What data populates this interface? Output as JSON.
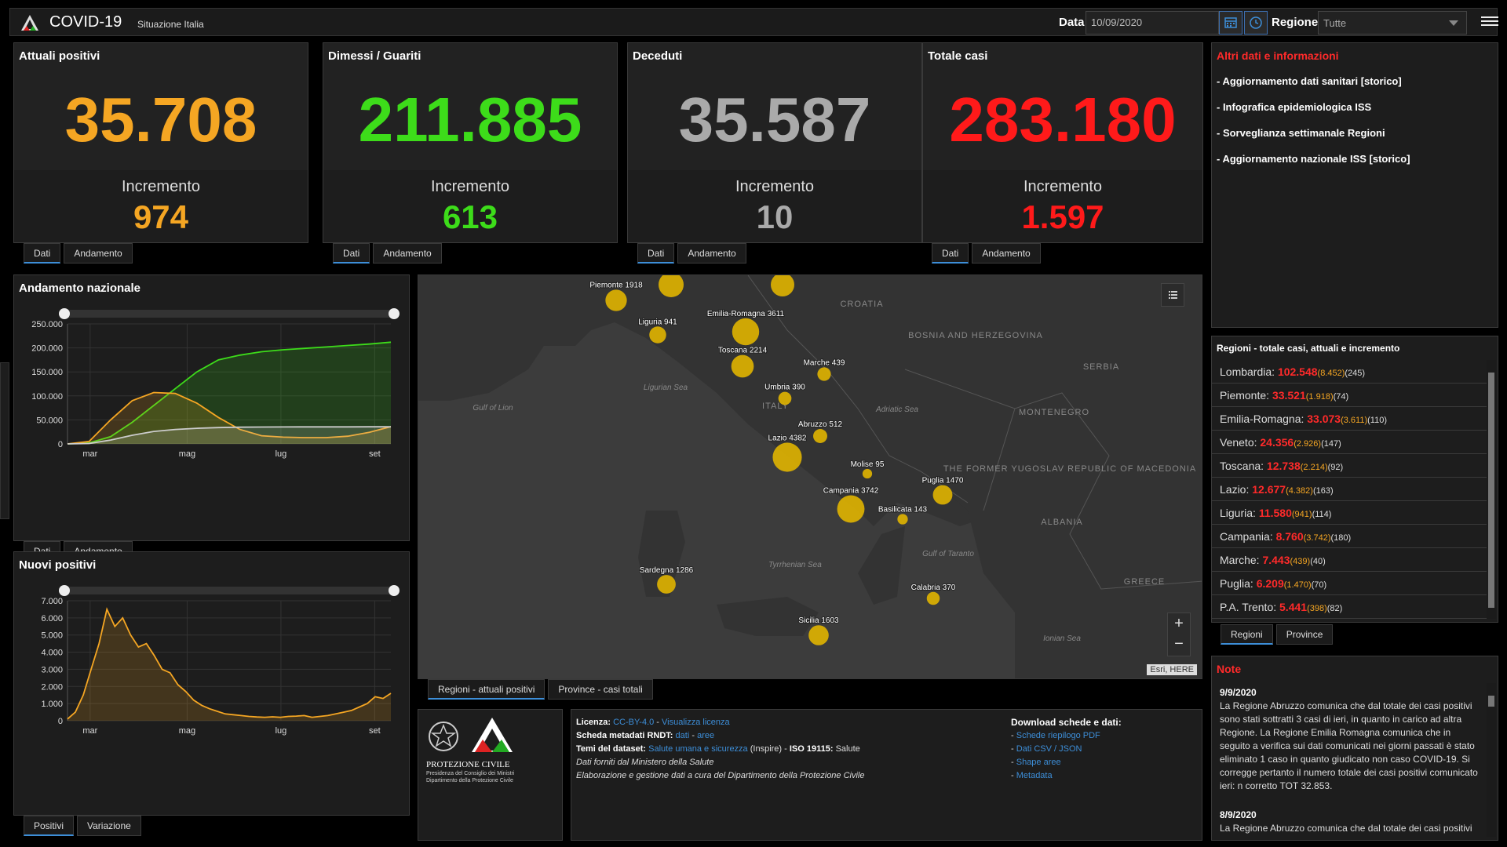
{
  "header": {
    "title": "COVID-19",
    "subtitle": "Situazione Italia",
    "date_label": "Data",
    "date_value": "10/09/2020",
    "region_label": "Regione",
    "region_value": "Tutte"
  },
  "stats": [
    {
      "label": "Attuali positivi",
      "value": "35.708",
      "inc_label": "Incremento",
      "inc": "974",
      "color": "#f5a623"
    },
    {
      "label": "Dimessi / Guariti",
      "value": "211.885",
      "inc_label": "Incremento",
      "inc": "613",
      "color": "#3ddc1a"
    },
    {
      "label": "Deceduti",
      "value": "35.587",
      "inc_label": "Incremento",
      "inc": "10",
      "color": "#aaaaaa"
    },
    {
      "label": "Totale casi",
      "value": "283.180",
      "inc_label": "Incremento",
      "inc": "1.597",
      "color": "#ff1a1a"
    }
  ],
  "stat_tabs": {
    "dati": "Dati",
    "andamento": "Andamento"
  },
  "info": {
    "title": "Altri dati e informazioni",
    "links": [
      "- Aggiornamento dati sanitari [storico]",
      "- Infografica epidemiologica ISS",
      "- Sorveglianza settimanale Regioni",
      "- Aggiornamento nazionale ISS [storico]"
    ]
  },
  "chart_data": [
    {
      "type": "area",
      "title": "Andamento nazionale",
      "x_ticks": [
        "mar",
        "mag",
        "lug",
        "set"
      ],
      "y_ticks": [
        "0",
        "50.000",
        "100.000",
        "150.000",
        "200.000",
        "250.000"
      ],
      "ylim": [
        0,
        250000
      ],
      "series": [
        {
          "color": "#3ddc1a",
          "values": [
            0,
            2000,
            15000,
            45000,
            80000,
            115000,
            150000,
            175000,
            185000,
            192000,
            196000,
            199000,
            202000,
            205000,
            208000,
            212000
          ]
        },
        {
          "color": "#f5a623",
          "values": [
            0,
            5000,
            50000,
            90000,
            107000,
            105000,
            85000,
            55000,
            30000,
            17000,
            14000,
            13000,
            13000,
            16000,
            24000,
            36000
          ]
        },
        {
          "color": "#cccccc",
          "values": [
            0,
            800,
            8000,
            18000,
            26000,
            30000,
            32500,
            34000,
            34800,
            35100,
            35300,
            35400,
            35450,
            35500,
            35550,
            35600
          ]
        }
      ]
    },
    {
      "type": "area",
      "title": "Nuovi positivi",
      "x_ticks": [
        "mar",
        "mag",
        "lug",
        "set"
      ],
      "y_ticks": [
        "0",
        "1.000",
        "2.000",
        "3.000",
        "4.000",
        "5.000",
        "6.000",
        "7.000"
      ],
      "ylim": [
        0,
        7000
      ],
      "series": [
        {
          "color": "#f5a623",
          "values": [
            100,
            500,
            1500,
            3000,
            4500,
            6500,
            5500,
            6000,
            5000,
            4300,
            4500,
            3800,
            3000,
            2800,
            2100,
            1700,
            1200,
            900,
            700,
            550,
            400,
            350,
            300,
            250,
            220,
            200,
            230,
            200,
            250,
            270,
            300,
            200,
            250,
            300,
            400,
            500,
            600,
            800,
            1000,
            1400,
            1300,
            1600
          ]
        }
      ]
    }
  ],
  "chart_tabs": {
    "andamento": [
      "Dati",
      "Andamento"
    ],
    "nuovi": [
      "Positivi",
      "Variazione"
    ]
  },
  "map": {
    "places": [
      {
        "label": "Piemonte 1918",
        "value": 1918
      },
      {
        "label": "Liguria 941",
        "value": 941
      },
      {
        "label": "Emilia-Romagna 3611",
        "value": 3611
      },
      {
        "label": "Toscana 2214",
        "value": 2214
      },
      {
        "label": "Marche 439",
        "value": 439
      },
      {
        "label": "Umbria 390",
        "value": 390
      },
      {
        "label": "Abruzzo 512",
        "value": 512
      },
      {
        "label": "Lazio 4382",
        "value": 4382
      },
      {
        "label": "Molise 95",
        "value": 95
      },
      {
        "label": "Puglia 1470",
        "value": 1470
      },
      {
        "label": "Campania 3742",
        "value": 3742
      },
      {
        "label": "Basilicata 143",
        "value": 143
      },
      {
        "label": "Sardegna 1286",
        "value": 1286
      },
      {
        "label": "Calabria 370",
        "value": 370
      },
      {
        "label": "Sicilia 1603",
        "value": 1603
      }
    ],
    "geo_labels": [
      "CROATIA",
      "BOSNIA AND HERZEGOVINA",
      "SERBIA",
      "MONTENEGRO",
      "THE FORMER YUGOSLAV REPUBLIC OF MACEDONIA",
      "ALBANIA",
      "GREECE",
      "ITALY",
      "Gulf of Lion",
      "Ligurian Sea",
      "Adriatic Sea",
      "Tyrrhenian Sea",
      "Gulf of Taranto",
      "Ionian Sea"
    ],
    "attribution": "Esri, HERE",
    "tabs": [
      "Regioni - attuali positivi",
      "Province - casi totali"
    ]
  },
  "regions": {
    "title": "Regioni - totale casi, attuali e incremento",
    "rows": [
      {
        "name": "Lombardia:",
        "tot": "102.548",
        "att": "(8.452)",
        "inc": "(245)"
      },
      {
        "name": "Piemonte:",
        "tot": "33.521",
        "att": "(1.918)",
        "inc": "(74)"
      },
      {
        "name": "Emilia-Romagna:",
        "tot": "33.073",
        "att": "(3.611)",
        "inc": "(110)"
      },
      {
        "name": "Veneto:",
        "tot": "24.356",
        "att": "(2.926)",
        "inc": "(147)"
      },
      {
        "name": "Toscana:",
        "tot": "12.738",
        "att": "(2.214)",
        "inc": "(92)"
      },
      {
        "name": "Lazio:",
        "tot": "12.677",
        "att": "(4.382)",
        "inc": "(163)"
      },
      {
        "name": "Liguria:",
        "tot": "11.580",
        "att": "(941)",
        "inc": "(114)"
      },
      {
        "name": "Campania:",
        "tot": "8.760",
        "att": "(3.742)",
        "inc": "(180)"
      },
      {
        "name": "Marche:",
        "tot": "7.443",
        "att": "(439)",
        "inc": "(40)"
      },
      {
        "name": "Puglia:",
        "tot": "6.209",
        "att": "(1.470)",
        "inc": "(70)"
      },
      {
        "name": "P.A. Trento:",
        "tot": "5.441",
        "att": "(398)",
        "inc": "(82)"
      }
    ],
    "tabs": [
      "Regioni",
      "Province"
    ]
  },
  "notes": {
    "title": "Note",
    "items": [
      {
        "date": "9/9/2020",
        "text": "La Regione Abruzzo comunica che dal totale dei casi positivi sono stati sottratti 3 casi di ieri, in quanto in carico ad altra Regione. La Regione Emilia Romagna comunica che in seguito a verifica sui dati comunicati nei giorni passati è stato eliminato 1 caso in quanto giudicato non caso COVID-19. Si corregge pertanto il numero totale dei casi positivi comunicato ieri: n corretto TOT 32.853."
      },
      {
        "date": "8/9/2020",
        "text": "La Regione Abruzzo comunica che dal totale dei casi positivi"
      }
    ]
  },
  "footer": {
    "logo_text": "PROTEZIONE CIVILE",
    "logo_sub1": "Presidenza del Consiglio dei Ministri",
    "logo_sub2": "Dipartimento della Protezione Civile",
    "licenza_label": "Licenza:",
    "licenza_link": "CC-BY-4.0",
    "licenza_sep": " - ",
    "licenza_view": "Visualizza licenza",
    "rndt_label": "Scheda metadati RNDT:",
    "rndt_dati": "dati",
    "rndt_sep": " - ",
    "rndt_aree": "aree",
    "temi_label": "Temi del dataset:",
    "temi_link": "Salute umana e sicurezza",
    "temi_rest": " (Inspire) - ",
    "iso_label": "ISO 19115:",
    "iso_value": " Salute",
    "fonte": "Dati forniti dal Ministero della Salute",
    "elab": "Elaborazione e gestione dati a cura del Dipartimento della Protezione Civile",
    "download_title": "Download schede e dati:",
    "downloads": [
      "Schede riepilogo PDF",
      "Dati CSV / JSON",
      "Shape aree",
      "Metadata"
    ]
  },
  "icons": [
    "logo-icon",
    "calendar-icon",
    "clock-icon",
    "menu-icon",
    "list-icon",
    "zoom-in-icon",
    "zoom-out-icon",
    "chevron-down-icon"
  ]
}
